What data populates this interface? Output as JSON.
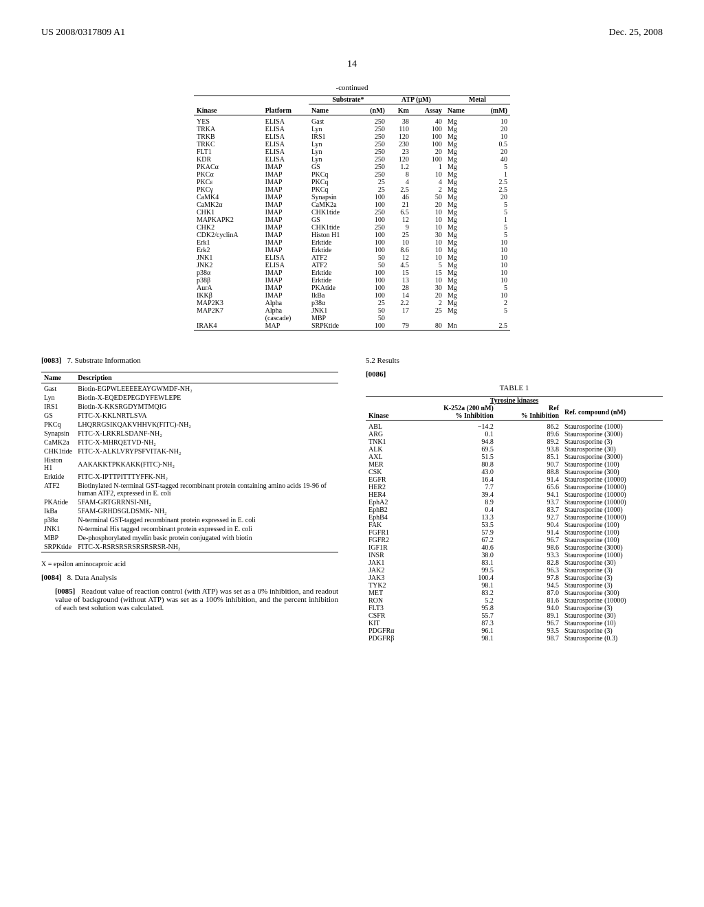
{
  "header": {
    "left": "US 2008/0317809 A1",
    "right": "Dec. 25, 2008",
    "page": "14"
  },
  "continued_label": "-continued",
  "kinase_table": {
    "group_headers": [
      "Substrate*",
      "ATP (μM)",
      "Metal"
    ],
    "col_headers": [
      "Kinase",
      "Platform",
      "Name",
      "(nM)",
      "Km",
      "Assay",
      "Name",
      "(mM)"
    ],
    "rows": [
      [
        "YES",
        "ELISA",
        "Gast",
        "250",
        "38",
        "40",
        "Mg",
        "10"
      ],
      [
        "TRKA",
        "ELISA",
        "Lyn",
        "250",
        "110",
        "100",
        "Mg",
        "20"
      ],
      [
        "TRKB",
        "ELISA",
        "IRS1",
        "250",
        "120",
        "100",
        "Mg",
        "10"
      ],
      [
        "TRKC",
        "ELISA",
        "Lyn",
        "250",
        "230",
        "100",
        "Mg",
        "0.5"
      ],
      [
        "FLT1",
        "ELISA",
        "Lyn",
        "250",
        "23",
        "20",
        "Mg",
        "20"
      ],
      [
        "KDR",
        "ELISA",
        "Lyn",
        "250",
        "120",
        "100",
        "Mg",
        "40"
      ],
      [
        "PKACα",
        "IMAP",
        "GS",
        "250",
        "1.2",
        "1",
        "Mg",
        "5"
      ],
      [
        "PKCα",
        "IMAP",
        "PKCq",
        "250",
        "8",
        "10",
        "Mg",
        "1"
      ],
      [
        "PKCε",
        "IMAP",
        "PKCq",
        "25",
        "4",
        "4",
        "Mg",
        "2.5"
      ],
      [
        "PKCγ",
        "IMAP",
        "PKCq",
        "25",
        "2.5",
        "2",
        "Mg",
        "2.5"
      ],
      [
        "CaMK4",
        "IMAP",
        "Synapsin",
        "100",
        "46",
        "50",
        "Mg",
        "20"
      ],
      [
        "CaMK2α",
        "IMAP",
        "CaMK2a",
        "100",
        "21",
        "20",
        "Mg",
        "5"
      ],
      [
        "CHK1",
        "IMAP",
        "CHK1tide",
        "250",
        "6.5",
        "10",
        "Mg",
        "5"
      ],
      [
        "MAPKAPK2",
        "IMAP",
        "GS",
        "100",
        "12",
        "10",
        "Mg",
        "1"
      ],
      [
        "CHK2",
        "IMAP",
        "CHK1tide",
        "250",
        "9",
        "10",
        "Mg",
        "5"
      ],
      [
        "CDK2/cyclinA",
        "IMAP",
        "Histon H1",
        "100",
        "25",
        "30",
        "Mg",
        "5"
      ],
      [
        "Erk1",
        "IMAP",
        "Erktide",
        "100",
        "10",
        "10",
        "Mg",
        "10"
      ],
      [
        "Erk2",
        "IMAP",
        "Erktide",
        "100",
        "8.6",
        "10",
        "Mg",
        "10"
      ],
      [
        "JNK1",
        "ELISA",
        "ATF2",
        "50",
        "12",
        "10",
        "Mg",
        "10"
      ],
      [
        "JNK2",
        "ELISA",
        "ATF2",
        "50",
        "4.5",
        "5",
        "Mg",
        "10"
      ],
      [
        "p38α",
        "IMAP",
        "Erktide",
        "100",
        "15",
        "15",
        "Mg",
        "10"
      ],
      [
        "p38β",
        "IMAP",
        "Erktide",
        "100",
        "13",
        "10",
        "Mg",
        "10"
      ],
      [
        "AurA",
        "IMAP",
        "PKAtide",
        "100",
        "28",
        "30",
        "Mg",
        "5"
      ],
      [
        "IKKβ",
        "IMAP",
        "IkBa",
        "100",
        "14",
        "20",
        "Mg",
        "10"
      ],
      [
        "MAP2K3",
        "Alpha",
        "p38α",
        "25",
        "2.2",
        "2",
        "Mg",
        "2"
      ],
      [
        "MAP2K7",
        "Alpha",
        "JNK1",
        "50",
        "17",
        "25",
        "Mg",
        "5"
      ],
      [
        "",
        "(cascade)",
        "MBP",
        "50",
        "",
        "",
        "",
        ""
      ],
      [
        "IRAK4",
        "MAP",
        "SRPKtide",
        "100",
        "79",
        "80",
        "Mn",
        "2.5"
      ]
    ]
  },
  "para83": {
    "num": "[0083]",
    "text": "7. Substrate Information"
  },
  "sub_table": {
    "headers": [
      "Name",
      "Description"
    ],
    "rows": [
      [
        "Gast",
        "Biotin-EGPWLEEEEEAYGWMDF-NH₂"
      ],
      [
        "Lyn",
        "Biotin-X-EQEDEPEGDYFEWLEPE"
      ],
      [
        "IRS1",
        "Biotin-X-KKSRGDYMTMQIG"
      ],
      [
        "GS",
        "FITC-X-KKLNRTLSVA"
      ],
      [
        "PKCq",
        "LHQRRGSIKQAKVHHVK(FITC)-NH₂"
      ],
      [
        "Synapsin",
        "FITC-X-LRKRLSDANF-NH₂"
      ],
      [
        "CaMK2a",
        "FITC-X-MHRQETVD-NH₂"
      ],
      [
        "CHK1tide",
        "FITC-X-ALKLVRYPSFVITAK-NH₂"
      ],
      [
        "Histon H1",
        "AAKAKKTPKKAKK(FITC)-NH₂"
      ],
      [
        "Erktide",
        "FITC-X-IPTTPITTTYFFK-NH₂"
      ],
      [
        "ATF2",
        "Biotinylated N-terminal GST-tagged recombinant protein containing amino acids 19-96 of human ATF2, expressed in E. coli"
      ],
      [
        "PKAtide",
        "5FAM-GRTGRRNSI-NH₂"
      ],
      [
        "IkBa",
        "5FAM-GRHDSGLDSMK- NH₂"
      ],
      [
        "p38α",
        "N-terminal GST-tagged recombinant protein expressed in E. coli"
      ],
      [
        "JNK1",
        "N-terminal His tagged recombinant protein expressed in E. coli"
      ],
      [
        "MBP",
        "De-phosphorylated myelin basic protein conjugated with biotin"
      ],
      [
        "SRPKtide",
        "FITC-X-RSRSRSRSRSRSRSR-NH₂"
      ]
    ]
  },
  "footnote_x": "X = epsilon aminocaproic acid",
  "para84": {
    "num": "[0084]",
    "text": "8. Data Analysis"
  },
  "para85": {
    "num": "[0085]",
    "text": "Readout value of reaction control (with ATP) was set as a 0% inhibition, and readout value of background (without ATP) was set as a 100% inhibition, and the percent inhibition of each test solution was calculated."
  },
  "results_title": "5.2 Results",
  "para86": {
    "num": "[0086]",
    "text": ""
  },
  "table1": {
    "title": "TABLE 1",
    "subtitle": "Tyrosine kinases",
    "headers": [
      "Kinase",
      "K-252a (200 nM)\n% Inhibition",
      "Ref\n% Inhibition",
      "Ref. compound (nM)"
    ],
    "rows": [
      [
        "ABL",
        "−14.2",
        "86.2",
        "Staurosporine (1000)"
      ],
      [
        "ARG",
        "0.1",
        "89.6",
        "Staurosporine (3000)"
      ],
      [
        "TNK1",
        "94.8",
        "89.2",
        "Staurosporine (3)"
      ],
      [
        "ALK",
        "69.5",
        "93.8",
        "Staurosporine (30)"
      ],
      [
        "AXL",
        "51.5",
        "85.1",
        "Staurosporine (3000)"
      ],
      [
        "MER",
        "80.8",
        "90.7",
        "Staurosporine (100)"
      ],
      [
        "CSK",
        "43.0",
        "88.8",
        "Staurosporine (300)"
      ],
      [
        "EGFR",
        "16.4",
        "91.4",
        "Staurosporine (10000)"
      ],
      [
        "HER2",
        "7.7",
        "65.6",
        "Staurosporine (10000)"
      ],
      [
        "HER4",
        "39.4",
        "94.1",
        "Staurosporine (10000)"
      ],
      [
        "EphA2",
        "8.9",
        "93.7",
        "Staurosporine (10000)"
      ],
      [
        "EphB2",
        "0.4",
        "83.7",
        "Staurosporine (1000)"
      ],
      [
        "EphB4",
        "13.3",
        "92.7",
        "Staurosporine (10000)"
      ],
      [
        "FAK",
        "53.5",
        "90.4",
        "Staurosporine (100)"
      ],
      [
        "FGFR1",
        "57.9",
        "91.4",
        "Staurosporine (100)"
      ],
      [
        "FGFR2",
        "67.2",
        "96.7",
        "Staurosporine (100)"
      ],
      [
        "IGF1R",
        "40.6",
        "98.6",
        "Staurosporine (3000)"
      ],
      [
        "INSR",
        "38.0",
        "93.3",
        "Staurosporine (1000)"
      ],
      [
        "JAK1",
        "83.1",
        "82.8",
        "Staurosporine (30)"
      ],
      [
        "JAK2",
        "99.5",
        "96.3",
        "Staurosporine (3)"
      ],
      [
        "JAK3",
        "100.4",
        "97.8",
        "Staurosporine (3)"
      ],
      [
        "TYK2",
        "98.1",
        "94.5",
        "Staurosporine (3)"
      ],
      [
        "MET",
        "83.2",
        "87.0",
        "Staurosporine (300)"
      ],
      [
        "RON",
        "5.2",
        "81.6",
        "Staurosporine (10000)"
      ],
      [
        "FLT3",
        "95.8",
        "94.0",
        "Staurosporine (3)"
      ],
      [
        "CSFR",
        "55.7",
        "89.1",
        "Staurosporine (30)"
      ],
      [
        "KIT",
        "87.3",
        "96.7",
        "Staurosporine (10)"
      ],
      [
        "PDGFRα",
        "96.1",
        "93.5",
        "Staurosporine (3)"
      ],
      [
        "PDGFRβ",
        "98.1",
        "98.7",
        "Staurosporine (0.3)"
      ]
    ]
  }
}
